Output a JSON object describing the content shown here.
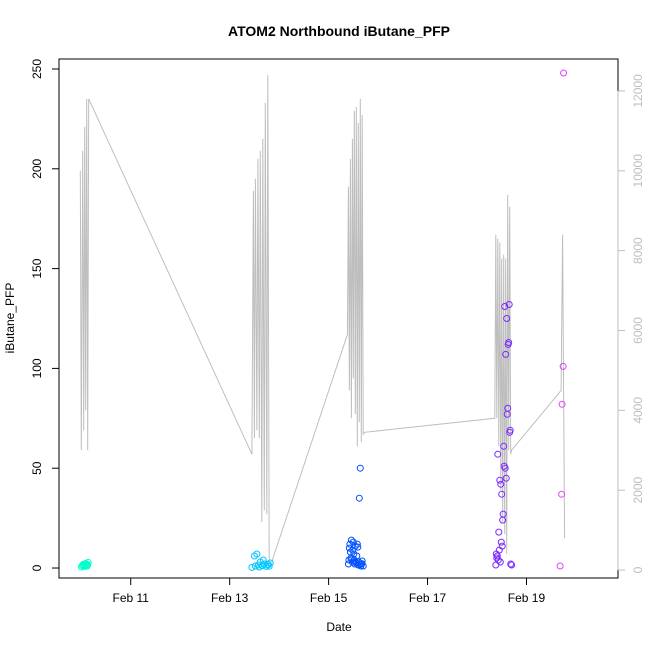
{
  "chart_data": {
    "type": "scatter",
    "title": "ATOM2 Northbound iButane_PFP",
    "xlabel": "Date",
    "ylabel": "iButane_PFP",
    "x_ticks": [
      "Feb 11",
      "Feb 13",
      "Feb 15",
      "Feb 17",
      "Feb 19"
    ],
    "x_tick_days": [
      11,
      13,
      15,
      17,
      19
    ],
    "xlim_days": [
      9.55,
      20.85
    ],
    "ylim": [
      -5,
      255
    ],
    "y_ticks": [
      0,
      50,
      100,
      150,
      200,
      250
    ],
    "y2lim": [
      -200,
      12800
    ],
    "y2_ticks": [
      0,
      2000,
      4000,
      6000,
      8000,
      10000,
      12000
    ],
    "y2_color": "#bebebe",
    "series": [
      {
        "color": "#00ffcc",
        "x": [
          10.0,
          10.02,
          10.04,
          10.06,
          10.08,
          10.1,
          10.12,
          10.14,
          10.05,
          10.09,
          10.11,
          10.13
        ],
        "y": [
          0.5,
          1.2,
          1.8,
          0.8,
          2.2,
          1.5,
          1.0,
          2.8,
          1.3,
          0.9,
          2.0,
          1.6
        ]
      },
      {
        "color": "#00c8ff",
        "x": [
          13.45,
          13.5,
          13.55,
          13.58,
          13.62,
          13.66,
          13.7,
          13.74,
          13.78,
          13.82,
          13.52,
          13.6,
          13.68,
          13.76,
          13.8
        ],
        "y": [
          0.3,
          6.0,
          7.0,
          1.5,
          3.0,
          1.2,
          2.0,
          0.8,
          1.6,
          2.5,
          1.0,
          0.5,
          4.0,
          1.8,
          0.9
        ]
      },
      {
        "color": "#0050ff",
        "x": [
          15.4,
          15.42,
          15.44,
          15.46,
          15.48,
          15.5,
          15.52,
          15.54,
          15.56,
          15.58,
          15.6,
          15.62,
          15.64,
          15.66,
          15.68,
          15.7,
          15.45,
          15.49,
          15.53,
          15.57,
          15.61,
          15.65,
          15.43,
          15.47,
          15.51,
          15.55,
          15.59,
          15.63,
          15.67,
          15.41
        ],
        "y": [
          2.0,
          10.0,
          8.0,
          14.0,
          3.0,
          13.0,
          4.0,
          11.0,
          2.5,
          12.0,
          1.5,
          35.0,
          50.0,
          2.0,
          3.5,
          1.0,
          5.0,
          9.0,
          2.0,
          6.0,
          3.0,
          1.0,
          12.0,
          4.5,
          7.0,
          2.8,
          10.5,
          1.8,
          2.2,
          4.0
        ]
      },
      {
        "color": "#7b2aff",
        "x": [
          18.38,
          18.4,
          18.42,
          18.44,
          18.46,
          18.48,
          18.5,
          18.52,
          18.54,
          18.56,
          18.58,
          18.6,
          18.62,
          18.64,
          18.66,
          18.68,
          18.41,
          18.45,
          18.49,
          18.53,
          18.57,
          18.61,
          18.65,
          18.43,
          18.47,
          18.51,
          18.55,
          18.59,
          18.63,
          18.67,
          18.39,
          18.7
        ],
        "y": [
          1.5,
          5.0,
          57.0,
          18.0,
          44.0,
          42.0,
          37.0,
          24.0,
          61.0,
          131.0,
          107.0,
          125.0,
          80.0,
          113.0,
          68.0,
          2.0,
          6.0,
          9.0,
          13.0,
          27.0,
          50.0,
          77.0,
          132.0,
          4.0,
          3.0,
          11.0,
          51.0,
          45.0,
          112.0,
          69.0,
          7.0,
          1.5
        ]
      },
      {
        "color": "#e040ff",
        "x": [
          19.68,
          19.71,
          19.72,
          19.74,
          19.75
        ],
        "y": [
          1.0,
          37.0,
          82.0,
          101.0,
          248.0
        ]
      }
    ],
    "grey_line": {
      "color": "#bebebe",
      "x": [
        9.98,
        10.0,
        10.03,
        10.05,
        10.07,
        10.09,
        10.11,
        10.13,
        10.15,
        13.45,
        13.48,
        13.5,
        13.52,
        13.55,
        13.57,
        13.6,
        13.62,
        13.65,
        13.67,
        13.7,
        13.72,
        13.75,
        13.77,
        13.8,
        13.85,
        15.38,
        15.4,
        15.42,
        15.44,
        15.46,
        15.48,
        15.5,
        15.52,
        15.54,
        15.56,
        15.58,
        15.6,
        15.62,
        15.64,
        15.66,
        15.68,
        15.7,
        15.73,
        18.36,
        18.38,
        18.4,
        18.42,
        18.44,
        18.46,
        18.48,
        18.5,
        18.52,
        18.54,
        18.56,
        18.58,
        18.6,
        18.62,
        18.64,
        18.66,
        18.68,
        18.7,
        19.7,
        19.73,
        19.75,
        19.77
      ],
      "y2": [
        10000,
        3000,
        10500,
        3500,
        11100,
        4000,
        11800,
        3000,
        11800,
        2900,
        9500,
        3300,
        9800,
        3500,
        10300,
        3300,
        10500,
        1200,
        10800,
        1500,
        11700,
        1400,
        12400,
        200,
        200,
        5900,
        9600,
        4500,
        10300,
        3800,
        10800,
        4800,
        11500,
        3900,
        11600,
        3100,
        11200,
        3700,
        11800,
        3200,
        11400,
        3400,
        3450,
        3800,
        8400,
        3800,
        8300,
        3100,
        8200,
        2000,
        7800,
        1200,
        7900,
        900,
        7800,
        400,
        9400,
        3000,
        9100,
        2900,
        3000,
        4500,
        8400,
        4500,
        800
      ]
    }
  }
}
